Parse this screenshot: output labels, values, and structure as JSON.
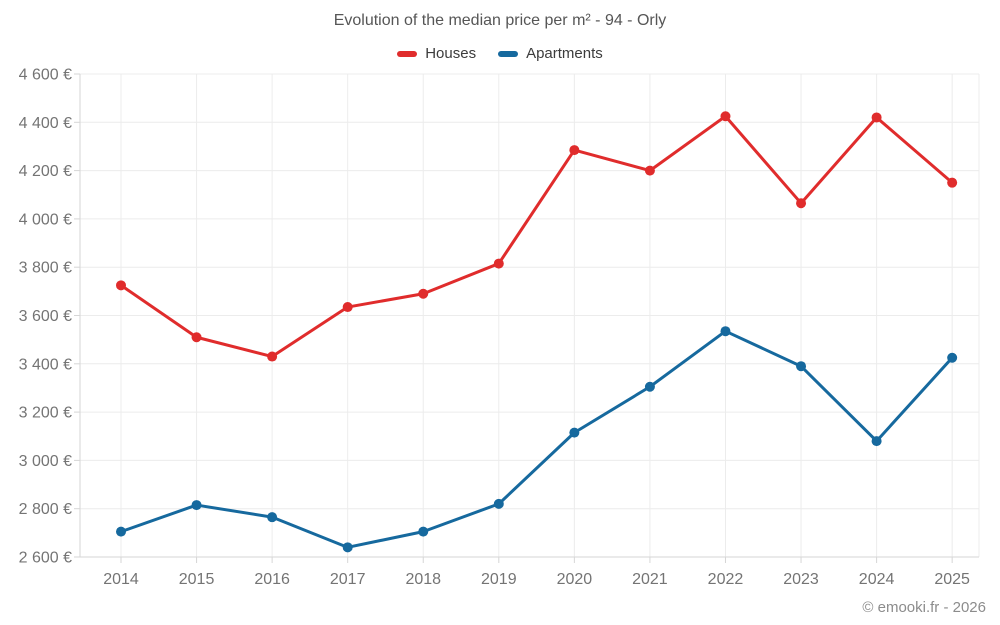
{
  "header": {
    "title": "Evolution of the median price per m² - 94 - Orly"
  },
  "legend": [
    {
      "label": "Houses",
      "color": "#e02c2c"
    },
    {
      "label": "Apartments",
      "color": "#16699e"
    }
  ],
  "footer": {
    "credit": "© emooki.fr - 2026"
  },
  "colors": {
    "houses": "#e02c2c",
    "apartments": "#16699e",
    "gridline": "#ececec",
    "axis_line": "#d6d6d6",
    "tick_label": "#747474"
  },
  "chart_data": {
    "type": "line",
    "title": "Evolution of the median price per m² - 94 - Orly",
    "categories": [
      "2014",
      "2015",
      "2016",
      "2017",
      "2018",
      "2019",
      "2020",
      "2021",
      "2022",
      "2023",
      "2024",
      "2025"
    ],
    "series": [
      {
        "name": "Houses",
        "color": "#e02c2c",
        "values": [
          3725,
          3510,
          3430,
          3635,
          3690,
          3815,
          4285,
          4200,
          4425,
          4065,
          4420,
          4150
        ]
      },
      {
        "name": "Apartments",
        "color": "#16699e",
        "values": [
          2705,
          2815,
          2765,
          2640,
          2705,
          2820,
          3115,
          3305,
          3535,
          3390,
          3080,
          3425
        ]
      }
    ],
    "xlabel": "",
    "ylabel": "",
    "ylim": [
      2600,
      4600
    ],
    "ytick_step": 200,
    "ytick_labels": [
      "2 600 €",
      "2 800 €",
      "3 000 €",
      "3 200 €",
      "3 400 €",
      "3 600 €",
      "3 800 €",
      "4 000 €",
      "4 200 €",
      "4 400 €",
      "4 600 €"
    ],
    "grid": true,
    "legend_position": "top",
    "marker": "circle"
  }
}
